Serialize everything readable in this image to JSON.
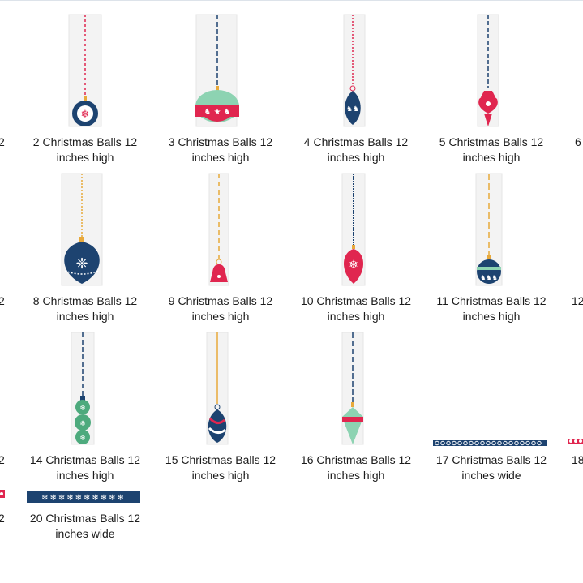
{
  "explorer": {
    "items": [
      {
        "label": "2 Christmas Balls 12 inches high",
        "image": "ornament-round-snowflake"
      },
      {
        "label": "3 Christmas Balls 12 inches high",
        "image": "ornament-wide-reindeer"
      },
      {
        "label": "4 Christmas Balls 12 inches high",
        "image": "ornament-drop-reindeer"
      },
      {
        "label": "5 Christmas Balls 12 inches high",
        "image": "ornament-finial-red"
      },
      {
        "label": "8 Christmas Balls 12 inches high",
        "image": "ornament-onion-damask"
      },
      {
        "label": "9 Christmas Balls 12 inches high",
        "image": "ornament-bell-red"
      },
      {
        "label": "10 Christmas Balls 12 inches high",
        "image": "ornament-drop-red-snowflake"
      },
      {
        "label": "11 Christmas Balls 12 inches high",
        "image": "ornament-round-reindeer"
      },
      {
        "label": "14 Christmas Balls 12 inches high",
        "image": "ornament-stacked-green"
      },
      {
        "label": "15 Christmas Balls 12 inches high",
        "image": "ornament-swirl"
      },
      {
        "label": "16 Christmas Balls 12 inches high",
        "image": "ornament-finial-green"
      },
      {
        "label": "17 Christmas Balls 12 inches wide",
        "image": "border-ribbon-circles"
      },
      {
        "label": "20 Christmas Balls 12 inches wide",
        "image": "border-ribbon-snowflakes"
      }
    ],
    "partial_labels": {
      "left_row1": "2",
      "left_row2": "2",
      "left_row3": "2",
      "left_row4": "2",
      "right_row1": "6",
      "right_row2": "12",
      "right_row3": "18"
    },
    "colors": {
      "navy": "#1d4370",
      "red": "#e0264f",
      "mint": "#8dd3b2",
      "gold": "#e8a93b",
      "text": "#1b1b1b"
    }
  }
}
